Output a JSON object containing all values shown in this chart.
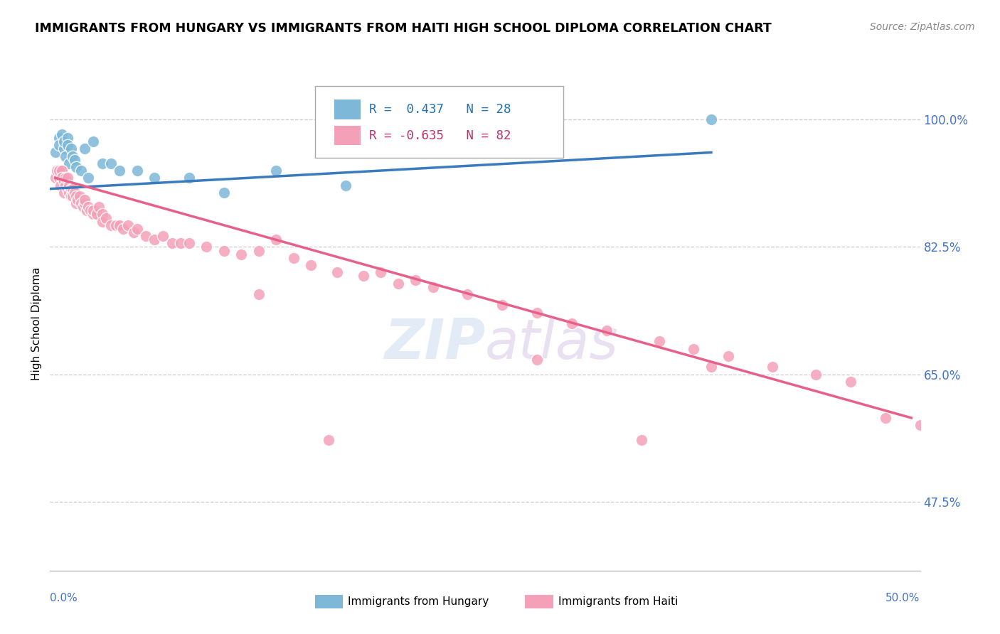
{
  "title": "IMMIGRANTS FROM HUNGARY VS IMMIGRANTS FROM HAITI HIGH SCHOOL DIPLOMA CORRELATION CHART",
  "source": "Source: ZipAtlas.com",
  "ylabel": "High School Diploma",
  "ytick_labels": [
    "100.0%",
    "82.5%",
    "65.0%",
    "47.5%"
  ],
  "ytick_values": [
    1.0,
    0.825,
    0.65,
    0.475
  ],
  "xlim": [
    0.0,
    0.5
  ],
  "ylim": [
    0.38,
    1.06
  ],
  "watermark": "ZIPatlas",
  "hungary_color": "#7db8d8",
  "haiti_color": "#f4a0b8",
  "hungary_line_color": "#3a7abf",
  "haiti_line_color": "#e8608a",
  "hungary_scatter_x": [
    0.003,
    0.005,
    0.005,
    0.007,
    0.008,
    0.008,
    0.009,
    0.01,
    0.01,
    0.011,
    0.012,
    0.013,
    0.014,
    0.015,
    0.018,
    0.02,
    0.022,
    0.025,
    0.03,
    0.035,
    0.04,
    0.05,
    0.06,
    0.08,
    0.1,
    0.13,
    0.17,
    0.38
  ],
  "hungary_scatter_y": [
    0.955,
    0.975,
    0.965,
    0.98,
    0.96,
    0.97,
    0.95,
    0.975,
    0.965,
    0.94,
    0.96,
    0.95,
    0.945,
    0.935,
    0.93,
    0.96,
    0.92,
    0.97,
    0.94,
    0.94,
    0.93,
    0.93,
    0.92,
    0.92,
    0.9,
    0.93,
    0.91,
    1.0
  ],
  "haiti_scatter_x": [
    0.003,
    0.004,
    0.005,
    0.005,
    0.006,
    0.007,
    0.007,
    0.008,
    0.008,
    0.009,
    0.009,
    0.01,
    0.01,
    0.011,
    0.011,
    0.012,
    0.012,
    0.013,
    0.013,
    0.014,
    0.015,
    0.015,
    0.016,
    0.017,
    0.018,
    0.019,
    0.02,
    0.02,
    0.021,
    0.022,
    0.023,
    0.025,
    0.025,
    0.027,
    0.028,
    0.03,
    0.03,
    0.032,
    0.035,
    0.038,
    0.04,
    0.042,
    0.045,
    0.048,
    0.05,
    0.055,
    0.06,
    0.065,
    0.07,
    0.075,
    0.08,
    0.09,
    0.1,
    0.11,
    0.12,
    0.13,
    0.14,
    0.15,
    0.165,
    0.18,
    0.19,
    0.2,
    0.21,
    0.22,
    0.24,
    0.26,
    0.28,
    0.3,
    0.32,
    0.35,
    0.37,
    0.39,
    0.415,
    0.44,
    0.46,
    0.12,
    0.28,
    0.38,
    0.16,
    0.34,
    0.48,
    0.5
  ],
  "haiti_scatter_y": [
    0.92,
    0.93,
    0.92,
    0.93,
    0.91,
    0.93,
    0.92,
    0.915,
    0.9,
    0.91,
    0.92,
    0.905,
    0.92,
    0.9,
    0.91,
    0.905,
    0.895,
    0.905,
    0.895,
    0.9,
    0.895,
    0.885,
    0.89,
    0.895,
    0.885,
    0.88,
    0.885,
    0.89,
    0.875,
    0.88,
    0.875,
    0.87,
    0.875,
    0.87,
    0.88,
    0.87,
    0.86,
    0.865,
    0.855,
    0.855,
    0.855,
    0.85,
    0.855,
    0.845,
    0.85,
    0.84,
    0.835,
    0.84,
    0.83,
    0.83,
    0.83,
    0.825,
    0.82,
    0.815,
    0.82,
    0.835,
    0.81,
    0.8,
    0.79,
    0.785,
    0.79,
    0.775,
    0.78,
    0.77,
    0.76,
    0.745,
    0.735,
    0.72,
    0.71,
    0.695,
    0.685,
    0.675,
    0.66,
    0.65,
    0.64,
    0.76,
    0.67,
    0.66,
    0.56,
    0.56,
    0.59,
    0.58
  ],
  "hungary_trend_x": [
    0.0,
    0.38
  ],
  "hungary_trend_y": [
    0.905,
    0.955
  ],
  "haiti_trend_x": [
    0.003,
    0.495
  ],
  "haiti_trend_y": [
    0.92,
    0.59
  ]
}
